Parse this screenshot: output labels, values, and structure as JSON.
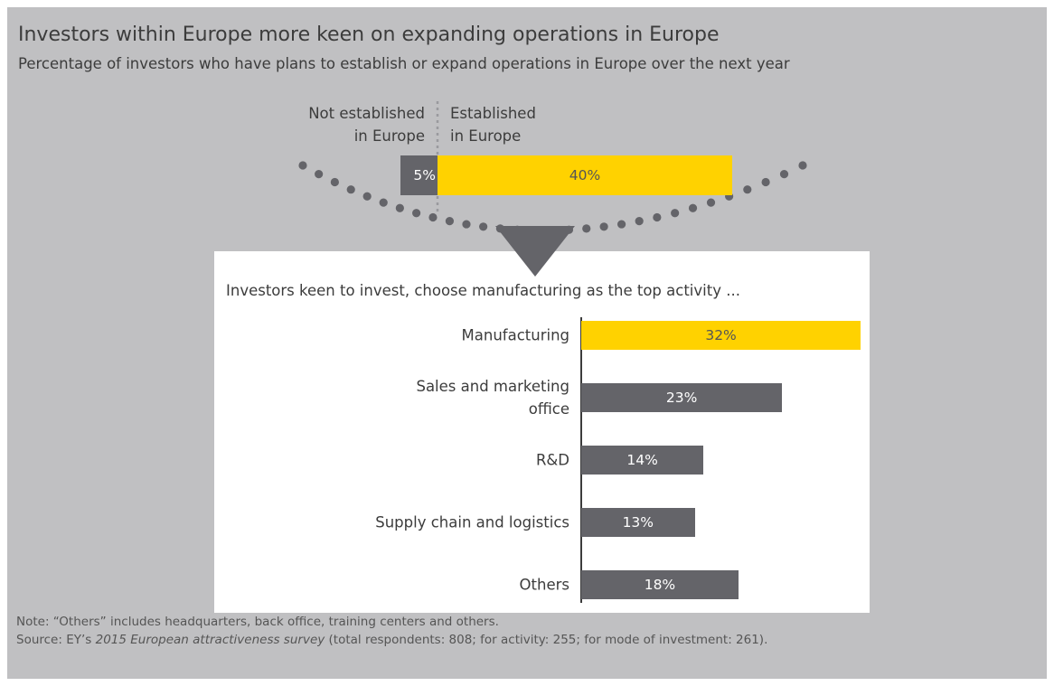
{
  "title": "Investors within Europe more keen on expanding operations in Europe",
  "subtitle": "Percentage of investors who have plans to establish or expand operations in Europe over the next year",
  "chart_data": [
    {
      "type": "diverging-bar",
      "categories": [
        "Not established\nin Europe",
        "Established\nin Europe"
      ],
      "values": [
        5,
        40
      ],
      "value_labels": [
        "5%",
        "40%"
      ],
      "colors": [
        "#646469",
        "#ffd200"
      ]
    },
    {
      "type": "bar",
      "title": "Investors keen to invest, choose manufacturing as the top activity ...",
      "categories": [
        "Manufacturing",
        "Sales and marketing\noffice",
        "R&D",
        "Supply chain and logistics",
        "Others"
      ],
      "values": [
        32,
        23,
        14,
        13,
        18
      ],
      "value_labels": [
        "32%",
        "23%",
        "14%",
        "13%",
        "18%"
      ],
      "colors": [
        "#ffd200",
        "#646469",
        "#646469",
        "#646469",
        "#646469"
      ]
    }
  ],
  "note": "Note: “Others” includes headquarters, back office, training centers and others.",
  "source": [
    "Source: EY’s ",
    "2015 European attractiveness survey",
    " (total respondents: 808; for activity: 255; for mode of investment: 261)."
  ]
}
